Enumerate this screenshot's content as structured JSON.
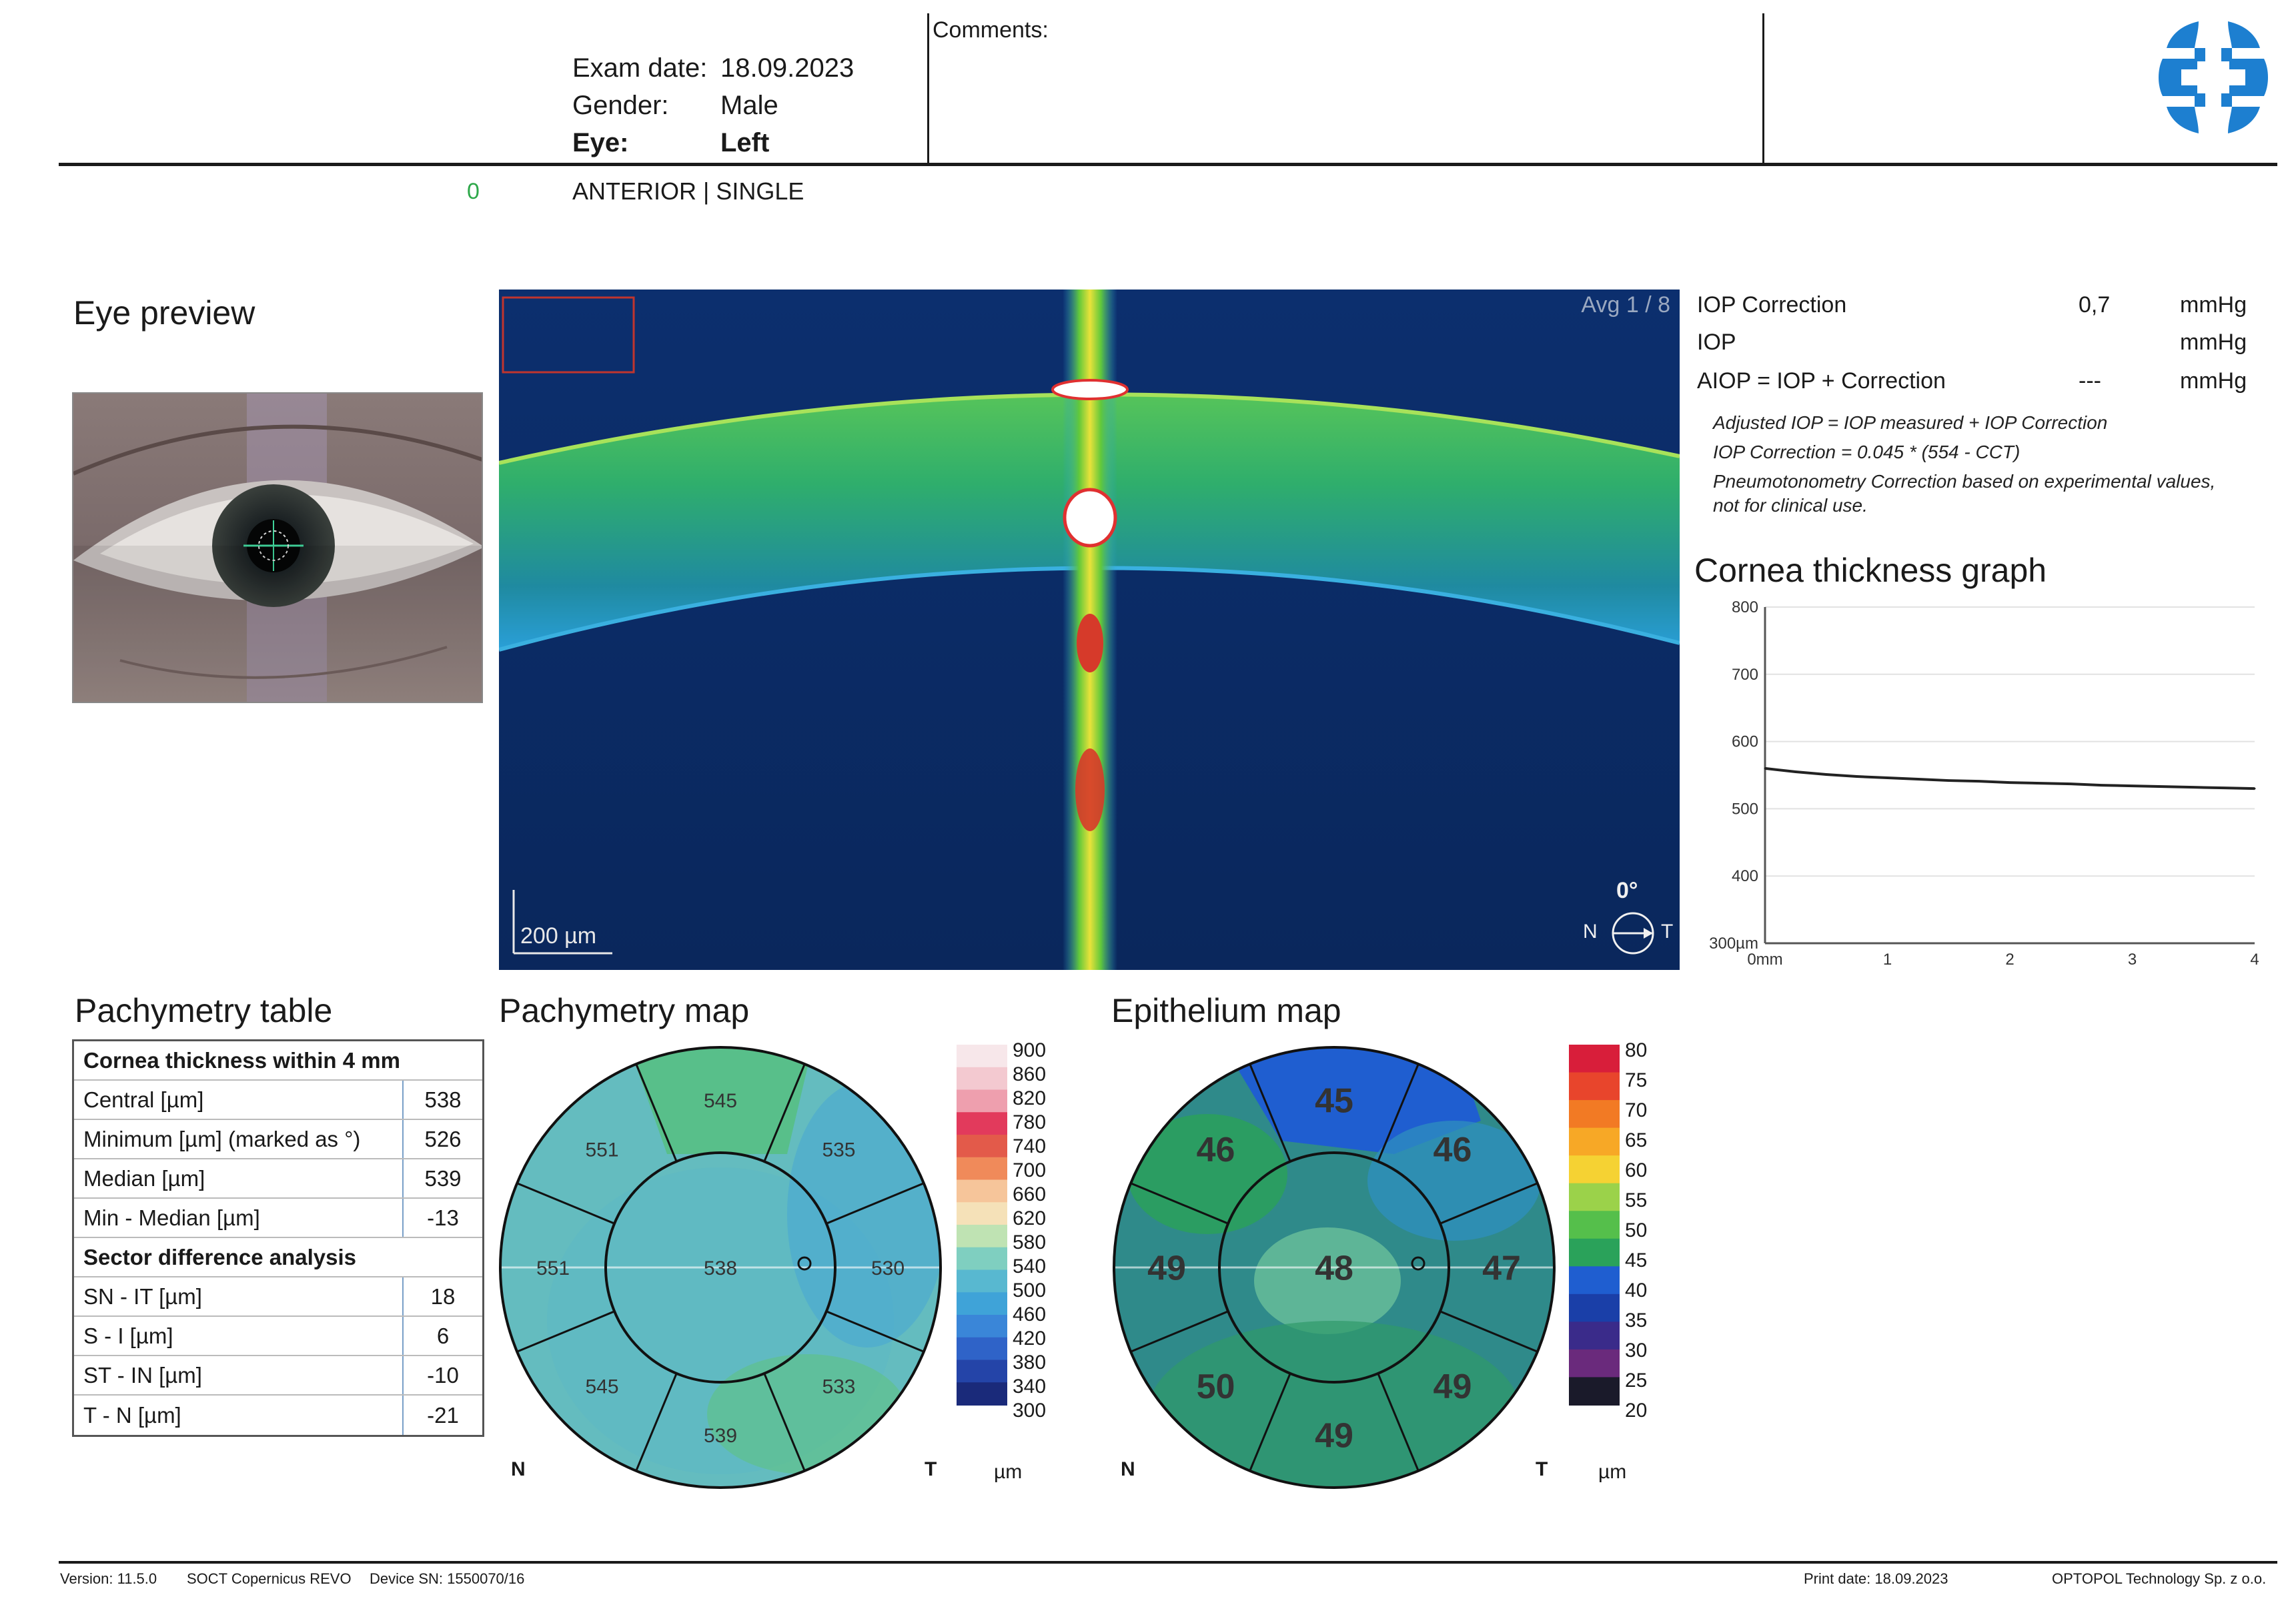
{
  "header": {
    "exam_date_label": "Exam date:",
    "exam_date": "18.09.2023",
    "gender_label": "Gender:",
    "gender": "Male",
    "eye_label": "Eye:",
    "eye": "Left",
    "comments_label": "Comments:",
    "scan_indicator": "0",
    "scan_mode": "ANTERIOR | SINGLE"
  },
  "eye_preview": {
    "title": "Eye preview"
  },
  "bscan": {
    "avg_label": "Avg 1 / 8",
    "scale_label": "200 µm",
    "angle": "0°",
    "nasal": "N",
    "temporal": "T"
  },
  "iop": {
    "rows": [
      {
        "label": "IOP Correction",
        "value": "0,7",
        "unit": "mmHg"
      },
      {
        "label": "IOP",
        "value": "",
        "unit": "mmHg"
      },
      {
        "label": "AIOP = IOP + Correction",
        "value": "---",
        "unit": "mmHg"
      }
    ],
    "notes": [
      "Adjusted IOP = IOP measured + IOP Correction",
      "IOP Correction = 0.045 * (554 - CCT)",
      "Pneumotonometry Correction based on experimental values,",
      "not for clinical use."
    ]
  },
  "thickness_graph": {
    "title": "Cornea thickness graph"
  },
  "chart_data": {
    "type": "line",
    "title": "Cornea thickness graph",
    "xlabel": "mm",
    "ylabel": "µm",
    "x_ticks": [
      "0mm",
      "1",
      "2",
      "3",
      "4"
    ],
    "y_ticks": [
      "300µm",
      "400",
      "500",
      "600",
      "700",
      "800"
    ],
    "xlim": [
      0,
      4
    ],
    "ylim": [
      300,
      800
    ],
    "grid": true,
    "x": [
      0,
      0.25,
      0.5,
      0.75,
      1.0,
      1.25,
      1.5,
      1.75,
      2.0,
      2.25,
      2.5,
      2.75,
      3.0,
      3.25,
      3.5,
      3.75,
      4.0
    ],
    "y": [
      560,
      555,
      551,
      548,
      546,
      544,
      542,
      541,
      539,
      538,
      537,
      535,
      534,
      533,
      532,
      531,
      530
    ]
  },
  "pachymetry_table": {
    "title": "Pachymetry table",
    "section1": "Cornea thickness within 4 mm",
    "rows1": [
      {
        "label": "Central [µm]",
        "value": "538"
      },
      {
        "label": "Minimum [µm] (marked as °)",
        "value": "526"
      },
      {
        "label": "Median [µm]",
        "value": "539"
      },
      {
        "label": "Min - Median [µm]",
        "value": "-13"
      }
    ],
    "section2": "Sector difference analysis",
    "rows2": [
      {
        "label": "SN - IT [µm]",
        "value": "18"
      },
      {
        "label": "S - I [µm]",
        "value": "6"
      },
      {
        "label": "ST - IN [µm]",
        "value": "-10"
      },
      {
        "label": "T - N [µm]",
        "value": "-21"
      }
    ]
  },
  "pachymetry_map": {
    "title": "Pachymetry map",
    "center": "538",
    "inner": [
      "545",
      "535",
      "530",
      "533",
      "539",
      "545",
      "551",
      "551"
    ],
    "nasal": "N",
    "temporal": "T",
    "unit": "µm",
    "scale": [
      "900",
      "860",
      "820",
      "780",
      "740",
      "700",
      "660",
      "620",
      "580",
      "540",
      "500",
      "460",
      "420",
      "380",
      "340",
      "300"
    ],
    "scale_colors": [
      "#f7e7ea",
      "#f3c9d0",
      "#ee9fae",
      "#e23a5c",
      "#e35a4a",
      "#f08a5a",
      "#f6c59a",
      "#f5e1b8",
      "#bfe3b3",
      "#7fcfc0",
      "#58b8d0",
      "#3fa3d8",
      "#3a86d8",
      "#2f63c8",
      "#2444a8",
      "#1a2a7a"
    ]
  },
  "epithelium_map": {
    "title": "Epithelium map",
    "center": "48",
    "inner": [
      "45",
      "46",
      "47",
      "49",
      "49",
      "50",
      "49",
      "46"
    ],
    "nasal": "N",
    "temporal": "T",
    "unit": "µm",
    "scale": [
      "80",
      "75",
      "70",
      "65",
      "60",
      "55",
      "50",
      "45",
      "40",
      "35",
      "30",
      "25",
      "20"
    ],
    "scale_colors": [
      "#d81e3a",
      "#e8452c",
      "#f27a24",
      "#f7a826",
      "#f5d233",
      "#9bd24a",
      "#55bf4b",
      "#2aa25a",
      "#1f5ed0",
      "#1a3fa8",
      "#3a2b8a",
      "#6a2a7c",
      "#1a1a2a"
    ]
  },
  "footer": {
    "version": "Version: 11.5.0",
    "device_model": "SOCT Copernicus REVO",
    "device_sn": "Device SN: 1550070/16",
    "print_date": "Print date: 18.09.2023",
    "company": "OPTOPOL Technology Sp. z o.o."
  },
  "colors": {
    "logo": "#1d7fd0",
    "text": "#1a1a1a",
    "graph_line": "#222222"
  }
}
